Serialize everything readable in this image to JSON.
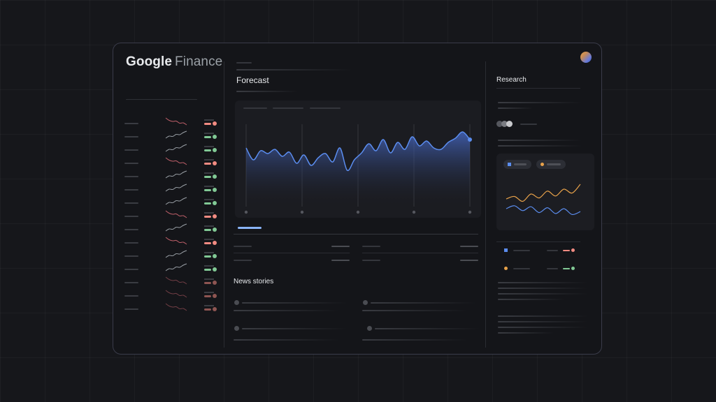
{
  "app": {
    "logo_google": "Google",
    "logo_finance": "Finance"
  },
  "main": {
    "forecast_title": "Forecast",
    "news_title": "News stories"
  },
  "research": {
    "title": "Research"
  },
  "colors": {
    "accent_blue": "#8ab4f8",
    "line_blue": "#5b8def",
    "gain_green": "#81c995",
    "loss_red": "#f28b82",
    "sparkline_red": "#c0606a",
    "sparkline_gray": "#9aa0a6",
    "orange_series": "#e8a24a"
  },
  "watchlist": {
    "trends": [
      "down",
      "up",
      "up",
      "down",
      "up",
      "up",
      "up",
      "down",
      "up",
      "down",
      "up",
      "up",
      "down",
      "down",
      "down"
    ]
  },
  "forecast_chart": {
    "type": "area",
    "values": [
      0.72,
      0.55,
      0.68,
      0.64,
      0.7,
      0.6,
      0.66,
      0.5,
      0.62,
      0.47,
      0.58,
      0.64,
      0.52,
      0.72,
      0.4,
      0.55,
      0.65,
      0.78,
      0.68,
      0.84,
      0.65,
      0.8,
      0.7,
      0.88,
      0.75,
      0.82,
      0.72,
      0.7,
      0.8,
      0.86,
      0.95,
      0.84
    ]
  },
  "research_chart": {
    "orange_series": [
      0.5,
      0.55,
      0.45,
      0.6,
      0.52,
      0.66,
      0.56,
      0.7,
      0.62,
      0.8
    ],
    "blue_series": [
      0.3,
      0.36,
      0.26,
      0.34,
      0.22,
      0.32,
      0.2,
      0.3,
      0.18,
      0.24
    ]
  }
}
